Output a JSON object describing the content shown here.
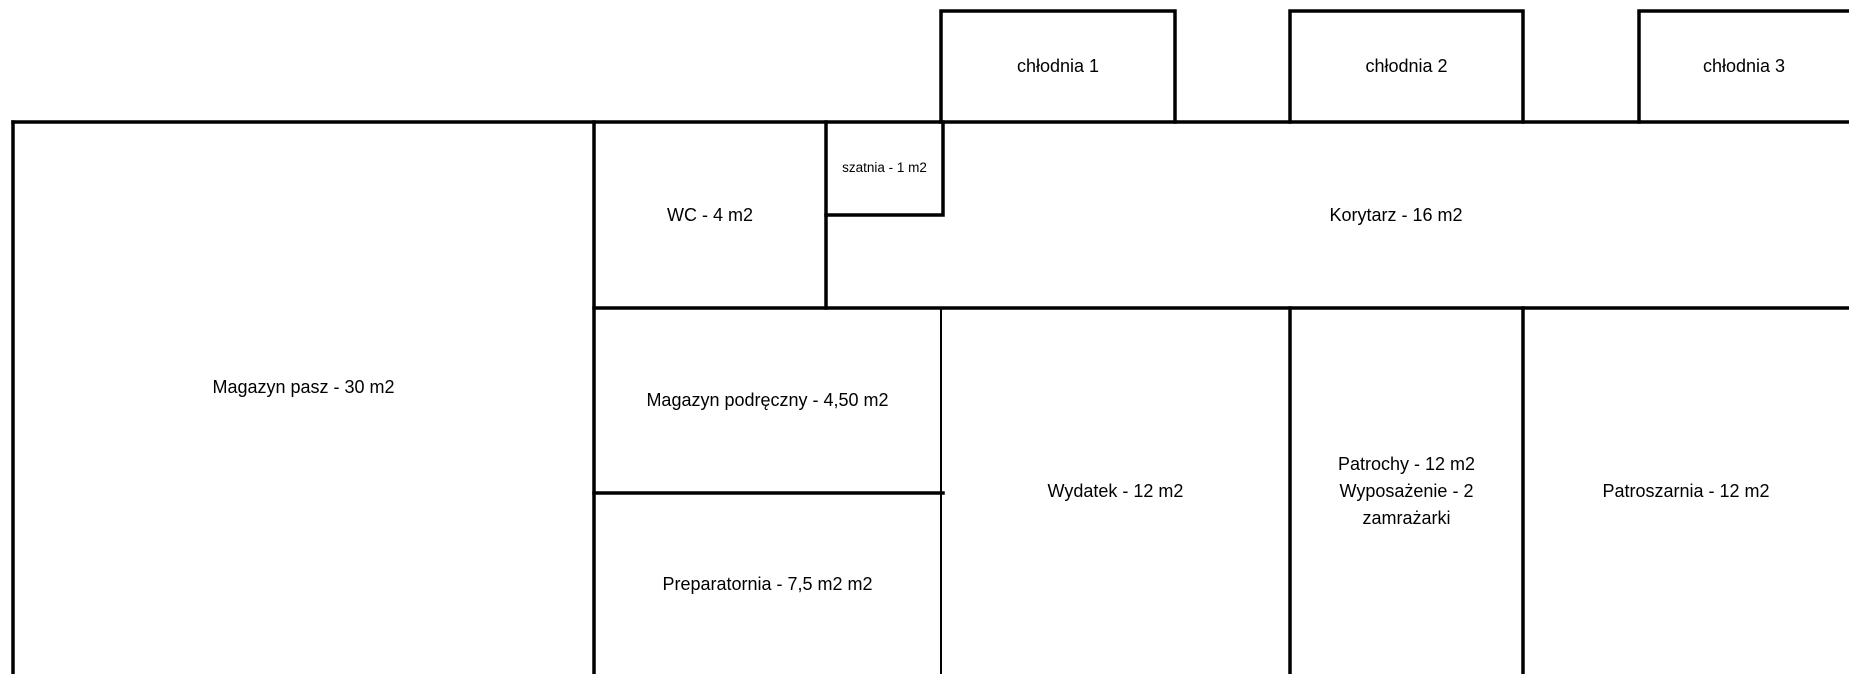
{
  "colors": {
    "background": "#ffffff",
    "wall": "#000000",
    "text": "#000000"
  },
  "rooms": {
    "chlodnia_1": "chłodnia 1",
    "chlodnia_2": "chłodnia 2",
    "chlodnia_3": "chłodnia 3",
    "magazyn_pasz": "Magazyn pasz - 30 m2",
    "wc": "WC - 4 m2",
    "szatnia": "szatnia - 1 m2",
    "korytarz": "Korytarz - 16 m2",
    "magazyn_podreczny": "Magazyn podręczny - 4,50 m2",
    "preparatornia": "Preparatornia - 7,5 m2 m2",
    "wydatek": "Wydatek - 12 m2",
    "patrochy_line1": "Patrochy - 12 m2",
    "patrochy_line2": "Wyposażenie - 2",
    "patrochy_line3": "zamrażarki",
    "patroszarnia": "Patroszarnia - 12 m2"
  }
}
